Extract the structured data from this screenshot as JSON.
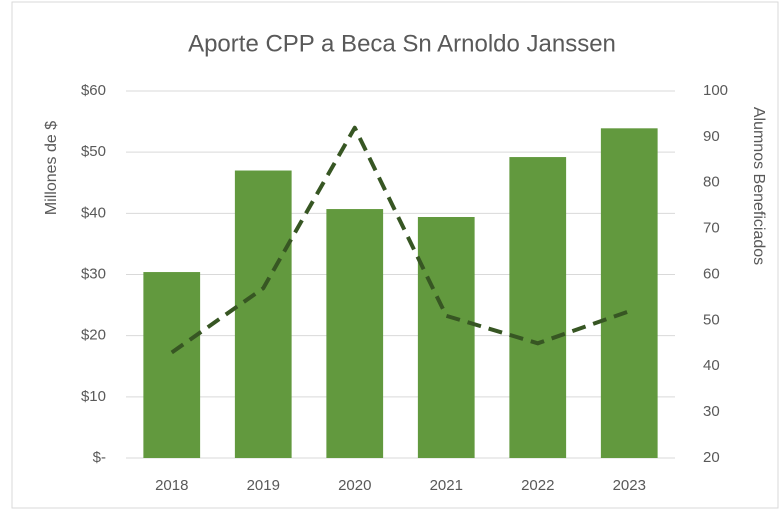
{
  "chart_data": {
    "type": "bar+line",
    "title": "Aporte CPP a Beca Sn Arnoldo Janssen",
    "y_label": "Millones de $",
    "y2_label": "Alumnos Beneficiados",
    "categories": [
      "2018",
      "2019",
      "2020",
      "2021",
      "2022",
      "2023"
    ],
    "series": [
      {
        "type": "bar",
        "color": "#62993e",
        "axis": "y",
        "values": [
          30.4,
          47,
          40.7,
          39.4,
          49.2,
          53.9
        ]
      },
      {
        "type": "line",
        "color": "#375623",
        "axis": "y2",
        "dashed": true,
        "values": [
          43,
          57,
          92,
          51,
          45,
          52
        ]
      }
    ],
    "ylim": [
      0,
      60
    ],
    "yticks": [
      {
        "value": 0,
        "label": "$-"
      },
      {
        "value": 10,
        "label": "$10"
      },
      {
        "value": 20,
        "label": "$20"
      },
      {
        "value": 30,
        "label": "$30"
      },
      {
        "value": 40,
        "label": "$40"
      },
      {
        "value": 50,
        "label": "$50"
      },
      {
        "value": 60,
        "label": "$60"
      }
    ],
    "y2lim": [
      20,
      100
    ],
    "y2ticks": [
      20,
      30,
      40,
      50,
      60,
      70,
      80,
      90,
      100
    ],
    "grid": true
  }
}
